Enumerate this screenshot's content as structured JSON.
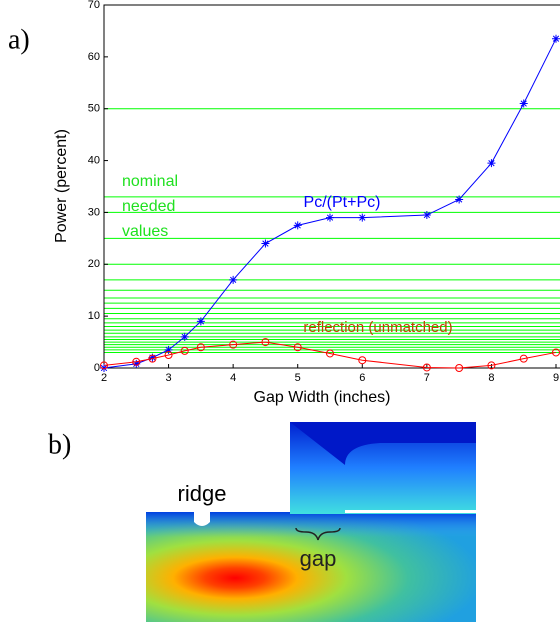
{
  "panel_labels": [
    "a)",
    "b)"
  ],
  "chart_data": {
    "type": "line",
    "xlabel": "Gap Width (inches)",
    "ylabel": "Power (percent)",
    "x": [
      2,
      2.5,
      2.75,
      3,
      3.25,
      3.5,
      4,
      4.5,
      5,
      5.5,
      6,
      7,
      7.5,
      8,
      8.5,
      9
    ],
    "series": [
      {
        "name": "Pc/(Pt+Pc)",
        "color": "#0000ff",
        "marker": "asterisk",
        "values": [
          0,
          0.8,
          2,
          3.5,
          6,
          9,
          17,
          24,
          27.5,
          29,
          29,
          29.5,
          32.5,
          39.5,
          51,
          63.5
        ]
      },
      {
        "name": "reflection (unmatched)",
        "color": "#ff0000",
        "marker": "circle",
        "values": [
          0.5,
          1.2,
          1.8,
          2.5,
          3.3,
          4,
          4.5,
          5,
          4,
          2.8,
          1.5,
          0.1,
          0,
          0.5,
          1.8,
          3
        ]
      }
    ],
    "reference_lines": [
      50,
      33,
      30,
      25,
      20,
      17,
      15,
      13.5,
      12.5,
      11.5,
      10.5,
      9.5,
      8.7,
      8,
      7.3,
      6.7,
      6,
      5.5,
      5,
      4.5,
      4,
      3.5,
      3
    ],
    "reference_color": "#00ff00",
    "reference_label": [
      "nominal",
      "needed",
      "values"
    ],
    "xlim": [
      2,
      9
    ],
    "ylim": [
      0,
      70
    ],
    "xticks": [
      2,
      3,
      4,
      5,
      6,
      7,
      8,
      9
    ],
    "yticks": [
      0,
      10,
      20,
      30,
      40,
      50,
      60,
      70
    ]
  },
  "image_b": {
    "labels": [
      "ridge",
      "gap"
    ]
  }
}
